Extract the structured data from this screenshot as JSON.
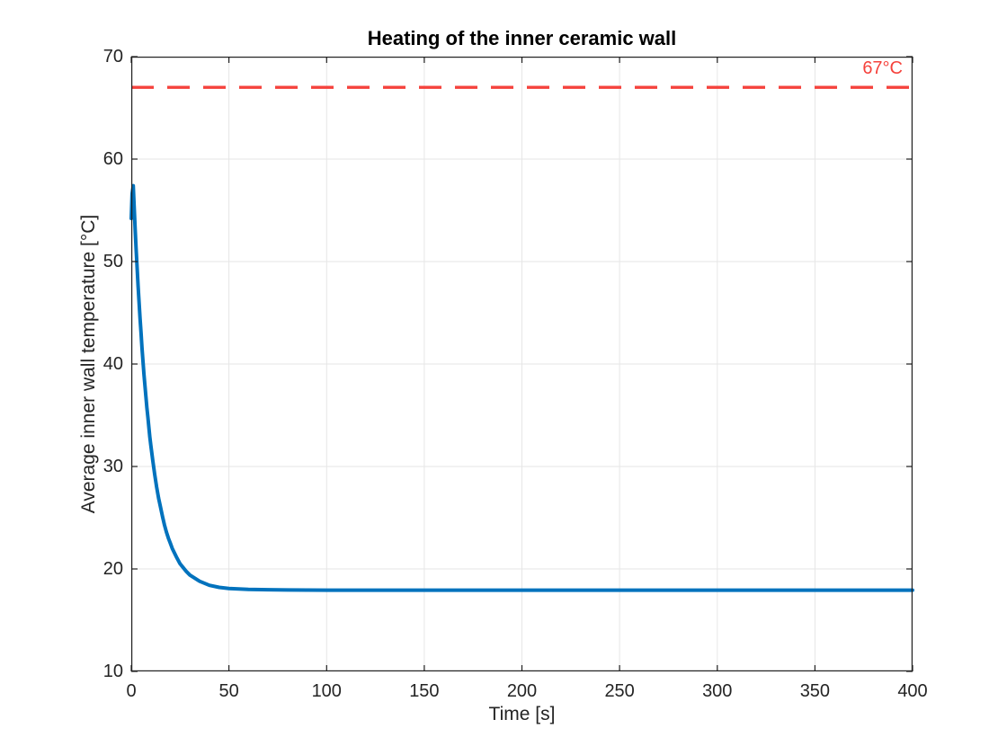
{
  "chart_data": {
    "type": "line",
    "title": "Heating of the inner ceramic wall",
    "xlabel": "Time [s]",
    "ylabel": "Average inner wall temperature [°C]",
    "xlim": [
      0,
      400
    ],
    "ylim": [
      10,
      70
    ],
    "xticks": [
      0,
      50,
      100,
      150,
      200,
      250,
      300,
      350,
      400
    ],
    "yticks": [
      10,
      20,
      30,
      40,
      50,
      60,
      70
    ],
    "grid": true,
    "grid_color": "#e6e6e6",
    "axis_color": "#1f1f1f",
    "legend": "none",
    "series": [
      {
        "name": "average-inner-wall-temperature",
        "color": "#0072bd",
        "line_width": 4,
        "points": [
          [
            0,
            54.2
          ],
          [
            0.4,
            56.6
          ],
          [
            1,
            57.4
          ],
          [
            1.5,
            55.2
          ],
          [
            2,
            53.2
          ],
          [
            2.5,
            51.2
          ],
          [
            3,
            49.4
          ],
          [
            3.5,
            47.6
          ],
          [
            4,
            46.0
          ],
          [
            4.5,
            44.4
          ],
          [
            5,
            43.0
          ],
          [
            5.5,
            41.6
          ],
          [
            6,
            40.3
          ],
          [
            6.5,
            39.0
          ],
          [
            7,
            37.9
          ],
          [
            7.5,
            36.8
          ],
          [
            8,
            35.7
          ],
          [
            8.5,
            34.8
          ],
          [
            9,
            33.8
          ],
          [
            9.5,
            32.9
          ],
          [
            10,
            32.1
          ],
          [
            11,
            30.6
          ],
          [
            12,
            29.2
          ],
          [
            13,
            28.0
          ],
          [
            14,
            26.9
          ],
          [
            15,
            26.0
          ],
          [
            16,
            25.1
          ],
          [
            17,
            24.3
          ],
          [
            18,
            23.6
          ],
          [
            19,
            23.0
          ],
          [
            20,
            22.5
          ],
          [
            21,
            22.0
          ],
          [
            23,
            21.2
          ],
          [
            25,
            20.5
          ],
          [
            28,
            19.8
          ],
          [
            30,
            19.4
          ],
          [
            35,
            18.8
          ],
          [
            40,
            18.4
          ],
          [
            45,
            18.2
          ],
          [
            50,
            18.1
          ],
          [
            60,
            18.0
          ],
          [
            70,
            17.97
          ],
          [
            80,
            17.95
          ],
          [
            100,
            17.93
          ],
          [
            150,
            17.93
          ],
          [
            200,
            17.93
          ],
          [
            250,
            17.93
          ],
          [
            300,
            17.93
          ],
          [
            350,
            17.93
          ],
          [
            400,
            17.93
          ]
        ]
      }
    ],
    "threshold": {
      "label": "67°C",
      "y": 67,
      "color": "#f5423c",
      "style": "dashed"
    }
  }
}
